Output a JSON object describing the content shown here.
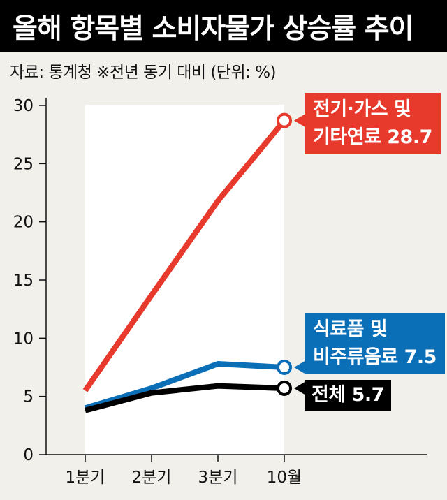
{
  "title": "올해 항목별 소비자물가 상승률 추이",
  "source": "자료: 통계청  ※전년 동기 대비  (단위: %)",
  "chart_data": {
    "type": "line",
    "categories": [
      "1분기",
      "2분기",
      "3분기",
      "10월"
    ],
    "ylim": [
      0,
      30
    ],
    "yticks": [
      "0",
      "5",
      "10",
      "15",
      "20",
      "25",
      "30"
    ],
    "series": [
      {
        "name": "전기·가스 및 기타연료",
        "values": [
          5.5,
          13.7,
          21.8,
          28.7
        ],
        "color": "#e8392d"
      },
      {
        "name": "식료품 및 비주류음료",
        "values": [
          4.0,
          5.7,
          7.8,
          7.5
        ],
        "color": "#0b6fb8"
      },
      {
        "name": "전체",
        "values": [
          3.8,
          5.3,
          5.9,
          5.7
        ],
        "color": "#000000"
      }
    ],
    "callouts": [
      {
        "line1": "전기·가스 및",
        "line2": "기타연료 28.7"
      },
      {
        "line1": "식료품 및",
        "line2": "비주류음료 7.5"
      },
      {
        "line1": "전체 5.7",
        "line2": ""
      }
    ]
  }
}
